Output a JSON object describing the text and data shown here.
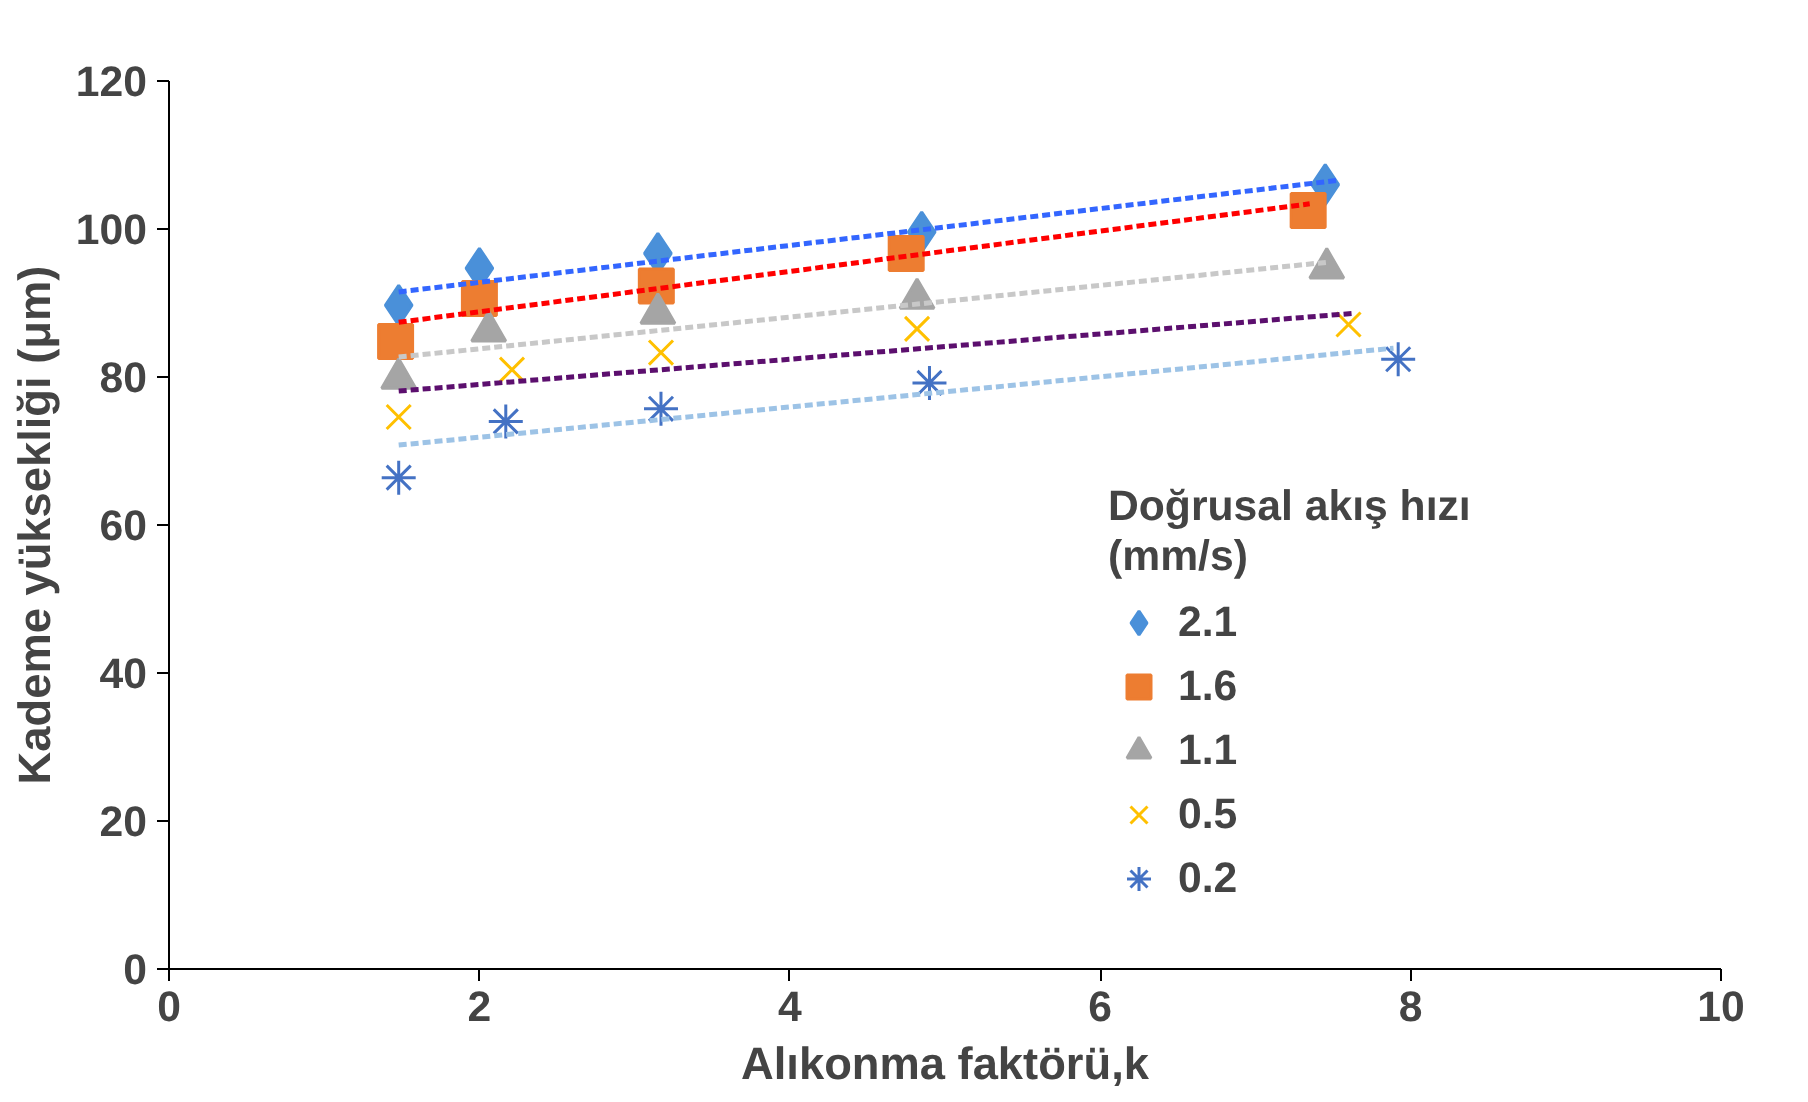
{
  "chart_data": {
    "type": "scatter",
    "xlabel": "Alıkonma faktörü,k",
    "ylabel": "Kademe yüksekliği (μm)",
    "legend_title": "Doğrusal akış hızı (mm/s)",
    "legend": "right",
    "grid": false,
    "xlim": [
      0,
      10
    ],
    "xticks": [
      0,
      2,
      4,
      6,
      8,
      10
    ],
    "ylim": [
      0,
      120
    ],
    "yticks": [
      0,
      20,
      40,
      60,
      80,
      100,
      120
    ],
    "series": [
      {
        "name": "2.1",
        "color": "#4a90d9",
        "marker": "diamond",
        "x": [
          1.48,
          2.0,
          3.15,
          4.85,
          7.45
        ],
        "values": [
          89.7,
          94.7,
          96.7,
          99.6,
          106
        ]
      },
      {
        "name": "1.6",
        "color": "#ed7d31",
        "marker": "square",
        "x": [
          1.46,
          2.0,
          3.14,
          4.75,
          7.34
        ],
        "values": [
          84.8,
          90.6,
          92.3,
          96.7,
          102.5
        ]
      },
      {
        "name": "1.1",
        "color": "#a5a5a5",
        "marker": "triangle",
        "x": [
          1.48,
          2.06,
          3.15,
          4.82,
          7.46
        ],
        "values": [
          79.8,
          86.2,
          88.6,
          90.6,
          94.7
        ]
      },
      {
        "name": "0.5",
        "color": "#ffc000",
        "marker": "cross",
        "x": [
          1.48,
          2.21,
          3.17,
          4.82,
          7.6
        ],
        "values": [
          74.6,
          81,
          83.3,
          86.5,
          87.1
        ]
      },
      {
        "name": "0.2",
        "color": "#4472c4",
        "marker": "cross",
        "x": [
          1.48,
          2.17,
          3.17,
          4.9,
          7.92
        ],
        "values": [
          66.4,
          74,
          75.7,
          79.2,
          82.4
        ]
      },
      {
        "type": "line",
        "color": "#3366ff",
        "line_style": "dashed",
        "marker": "none",
        "x": [
          1.48,
          7.54
        ],
        "values": [
          91.5,
          106.6
        ]
      },
      {
        "type": "line",
        "color": "#ff0000",
        "line_style": "dashed",
        "marker": "none",
        "x": [
          1.48,
          7.35
        ],
        "values": [
          87.4,
          103.4
        ]
      },
      {
        "type": "line",
        "color": "#c8c8c8",
        "line_style": "dashed",
        "marker": "none",
        "x": [
          1.48,
          7.46
        ],
        "values": [
          82.7,
          95.5
        ]
      },
      {
        "type": "line",
        "color": "#5c0f6e",
        "line_style": "dashed",
        "marker": "none",
        "x": [
          1.48,
          7.63
        ],
        "values": [
          78.1,
          88.6
        ]
      },
      {
        "type": "line",
        "color": "#9dc3e6",
        "line_style": "dashed",
        "marker": "none",
        "x": [
          1.48,
          7.89
        ],
        "values": [
          70.8,
          83.9
        ]
      }
    ]
  }
}
